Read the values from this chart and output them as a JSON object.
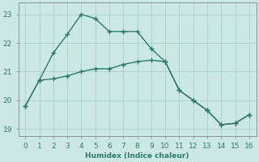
{
  "xlabel": "Humidex (Indice chaleur)",
  "bg_color": "#cce8e4",
  "line_color": "#2d7a6e",
  "grid_color": "#aacfcb",
  "xlim": [
    -0.5,
    16.5
  ],
  "ylim": [
    18.75,
    23.4
  ],
  "yticks": [
    19,
    20,
    21,
    22,
    23
  ],
  "xticks": [
    0,
    1,
    2,
    3,
    4,
    5,
    6,
    7,
    8,
    9,
    10,
    11,
    12,
    13,
    14,
    15,
    16
  ],
  "line1_x": [
    0,
    1,
    2,
    3,
    4,
    5,
    6,
    7,
    8,
    9,
    10,
    11,
    12,
    13,
    14,
    15,
    16
  ],
  "line1_y": [
    19.8,
    20.7,
    21.65,
    22.3,
    23.0,
    22.85,
    22.4,
    22.4,
    22.4,
    21.8,
    21.35,
    20.35,
    20.0,
    19.65,
    19.15,
    19.2,
    19.5
  ],
  "line2_x": [
    0,
    1,
    2,
    3,
    4,
    5,
    6,
    7,
    8,
    9,
    10,
    11,
    12,
    13,
    14,
    15,
    16
  ],
  "line2_y": [
    19.8,
    20.7,
    20.75,
    20.85,
    21.0,
    21.1,
    21.1,
    21.25,
    21.35,
    21.4,
    21.35,
    20.35,
    20.0,
    19.65,
    19.15,
    19.2,
    19.5
  ]
}
